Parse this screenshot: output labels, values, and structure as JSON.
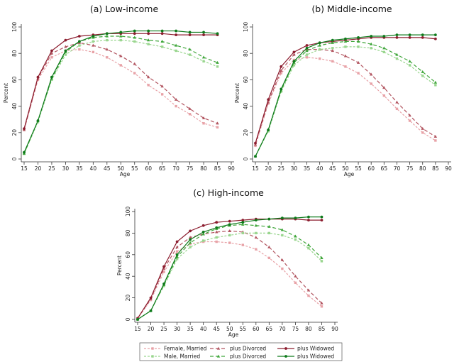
{
  "chart_data": {
    "type": "line",
    "panels": [
      {
        "title": "(a) Low-income",
        "xlabel": "Age",
        "ylabel": "Percent",
        "xlim": [
          15,
          90
        ],
        "ylim": [
          0,
          100
        ],
        "xticks": [
          15,
          20,
          25,
          30,
          35,
          40,
          45,
          50,
          55,
          60,
          65,
          70,
          75,
          80,
          85,
          90
        ],
        "yticks": [
          0,
          20,
          40,
          60,
          80,
          100
        ],
        "x": [
          15,
          20,
          25,
          30,
          35,
          40,
          45,
          50,
          55,
          60,
          65,
          70,
          75,
          80,
          85
        ],
        "series": [
          {
            "key": "fm",
            "values": [
              22,
              60,
              77,
              82,
              83,
              81,
              77,
              71,
              65,
              56,
              49,
              40,
              34,
              27,
              24
            ]
          },
          {
            "key": "fd",
            "values": [
              22,
              61,
              80,
              85,
              88,
              86,
              83,
              78,
              72,
              62,
              55,
              45,
              38,
              31,
              27
            ]
          },
          {
            "key": "fw",
            "values": [
              23,
              62,
              82,
              90,
              93,
              94,
              95,
              95,
              95,
              95,
              95,
              94,
              94,
              94,
              94
            ]
          },
          {
            "key": "mm",
            "values": [
              4,
              28,
              60,
              79,
              86,
              89,
              90,
              90,
              89,
              87,
              85,
              82,
              79,
              74,
              70
            ]
          },
          {
            "key": "md",
            "values": [
              4,
              29,
              61,
              81,
              89,
              92,
              93,
              93,
              92,
              90,
              89,
              86,
              83,
              77,
              73
            ]
          },
          {
            "key": "mw",
            "values": [
              5,
              29,
              62,
              82,
              89,
              93,
              95,
              96,
              97,
              97,
              97,
              97,
              96,
              96,
              95
            ]
          }
        ]
      },
      {
        "title": "(b) Middle-income",
        "xlabel": "Age",
        "ylabel": "Percent",
        "xlim": [
          15,
          90
        ],
        "ylim": [
          0,
          100
        ],
        "xticks": [
          15,
          20,
          25,
          30,
          35,
          40,
          45,
          50,
          55,
          60,
          65,
          70,
          75,
          80,
          85,
          90
        ],
        "yticks": [
          0,
          20,
          40,
          60,
          80,
          100
        ],
        "x": [
          15,
          20,
          25,
          30,
          35,
          40,
          45,
          50,
          55,
          60,
          65,
          70,
          75,
          80,
          85
        ],
        "series": [
          {
            "key": "fm",
            "values": [
              10,
              42,
              65,
              75,
              77,
              76,
              74,
              70,
              65,
              57,
              48,
              38,
              29,
              20,
              14
            ]
          },
          {
            "key": "fd",
            "values": [
              11,
              43,
              67,
              79,
              83,
              83,
              82,
              78,
              73,
              64,
              54,
              43,
              33,
              23,
              17
            ]
          },
          {
            "key": "fw",
            "values": [
              12,
              45,
              70,
              81,
              86,
              88,
              89,
              90,
              91,
              92,
              92,
              92,
              92,
              92,
              91
            ]
          },
          {
            "key": "mm",
            "values": [
              2,
              21,
              51,
              71,
              79,
              83,
              84,
              85,
              85,
              84,
              81,
              76,
              71,
              63,
              56
            ]
          },
          {
            "key": "md",
            "values": [
              2,
              22,
              52,
              73,
              82,
              86,
              88,
              89,
              89,
              87,
              84,
              79,
              74,
              66,
              58
            ]
          },
          {
            "key": "mw",
            "values": [
              2,
              22,
              53,
              74,
              84,
              88,
              90,
              91,
              92,
              93,
              93,
              94,
              94,
              94,
              94
            ]
          }
        ]
      },
      {
        "title": "(c) High-income",
        "xlabel": "Age",
        "ylabel": "Percent",
        "xlim": [
          15,
          90
        ],
        "ylim": [
          0,
          100
        ],
        "xticks": [
          15,
          20,
          25,
          30,
          35,
          40,
          45,
          50,
          55,
          60,
          65,
          70,
          75,
          80,
          85,
          90
        ],
        "yticks": [
          0,
          20,
          40,
          60,
          80,
          100
        ],
        "x": [
          15,
          20,
          25,
          30,
          35,
          40,
          45,
          50,
          55,
          60,
          65,
          70,
          75,
          80,
          85
        ],
        "series": [
          {
            "key": "fm",
            "values": [
              1,
              18,
              44,
              63,
              70,
              72,
              72,
              71,
              69,
              65,
              57,
              47,
              34,
              22,
              12
            ]
          },
          {
            "key": "fd",
            "values": [
              1,
              19,
              47,
              67,
              76,
              79,
              81,
              82,
              81,
              76,
              67,
              55,
              40,
              27,
              15
            ]
          },
          {
            "key": "fw",
            "values": [
              1,
              20,
              49,
              72,
              82,
              87,
              90,
              91,
              92,
              93,
              93,
              93,
              93,
              92,
              92
            ]
          },
          {
            "key": "mm",
            "values": [
              0,
              8,
              31,
              56,
              67,
              73,
              76,
              78,
              80,
              80,
              80,
              78,
              74,
              66,
              54
            ]
          },
          {
            "key": "md",
            "values": [
              0,
              8,
              32,
              58,
              71,
              79,
              84,
              87,
              88,
              87,
              86,
              83,
              77,
              69,
              57
            ]
          },
          {
            "key": "mw",
            "values": [
              0,
              8,
              33,
              60,
              74,
              81,
              85,
              88,
              90,
              92,
              93,
              94,
              94,
              95,
              95
            ]
          }
        ]
      }
    ],
    "legend": {
      "placement": "bottom-center",
      "entries": [
        {
          "key": "fm",
          "label": "Female, Married"
        },
        {
          "key": "fd",
          "label": "plus Divorced"
        },
        {
          "key": "fw",
          "label": "plus Widowed"
        },
        {
          "key": "mm",
          "label": "Male, Married"
        },
        {
          "key": "md",
          "label": "plus Divorced"
        },
        {
          "key": "mw",
          "label": "plus Widowed"
        }
      ]
    },
    "styles": {
      "fm": {
        "color": "#e8a2a7",
        "dash": "3,2",
        "marker": "square"
      },
      "fd": {
        "color": "#b25560",
        "dash": "5,3",
        "marker": "triangle"
      },
      "fw": {
        "color": "#8c1d2f",
        "dash": "",
        "marker": "circle"
      },
      "mm": {
        "color": "#9ad68f",
        "dash": "3,2",
        "marker": "square"
      },
      "md": {
        "color": "#3fa63a",
        "dash": "5,3",
        "marker": "triangle"
      },
      "mw": {
        "color": "#0e7a1b",
        "dash": "",
        "marker": "circle"
      }
    }
  }
}
